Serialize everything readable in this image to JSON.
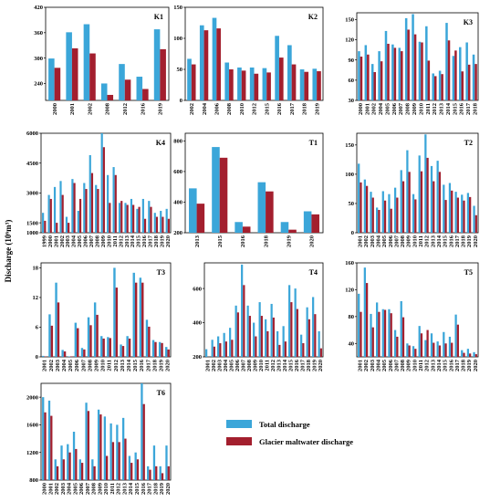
{
  "colors": {
    "total": "#3BA6D9",
    "glacier": "#A31F2E"
  },
  "ylabel": "Discharge (10⁶m³)",
  "legend": {
    "total": "Total discharge",
    "glacier": "Glacier maltwater discharge"
  },
  "chart_data": [
    {
      "id": "K1",
      "type": "bar",
      "title": "K1",
      "categories": [
        "2000",
        "2001",
        "2002",
        "2008",
        "2012",
        "2016",
        "2019"
      ],
      "ylim": [
        200,
        420
      ],
      "yticks": [
        240,
        300,
        360,
        420
      ],
      "series": [
        {
          "name": "Total discharge",
          "values": [
            299,
            361,
            380,
            240,
            286,
            256,
            368
          ]
        },
        {
          "name": "Glacier maltwater discharge",
          "values": [
            277,
            323,
            311,
            213,
            249,
            227,
            321
          ]
        }
      ]
    },
    {
      "id": "K2",
      "type": "bar",
      "title": "K2",
      "categories": [
        "2002",
        "2004",
        "2006",
        "2008",
        "2010",
        "2012",
        "2015",
        "2016",
        "2017",
        "2018",
        "2019"
      ],
      "ylim": [
        0,
        150
      ],
      "yticks": [
        0,
        50,
        100,
        150
      ],
      "series": [
        {
          "name": "Total discharge",
          "values": [
            67,
            121,
            133,
            61,
            53,
            53,
            52,
            104,
            89,
            50,
            51
          ]
        },
        {
          "name": "Glacier maltwater discharge",
          "values": [
            58,
            113,
            116,
            50,
            48,
            43,
            45,
            69,
            58,
            46,
            47
          ]
        }
      ]
    },
    {
      "id": "K3",
      "type": "bar",
      "title": "K3",
      "categories": [
        "2000",
        "2001",
        "2002",
        "2004",
        "2005",
        "2006",
        "2007",
        "2008",
        "2009",
        "2010",
        "2011",
        "2012",
        "2013",
        "2014",
        "2015",
        "2016",
        "2017",
        "2018"
      ],
      "ylim": [
        30,
        160
      ],
      "yticks": [
        30,
        60,
        90,
        120,
        150
      ],
      "series": [
        {
          "name": "Total discharge",
          "values": [
            103,
            112,
            84,
            103,
            133,
            113,
            108,
            152,
            158,
            117,
            140,
            70,
            74,
            145,
            96,
            109,
            116,
            98
          ]
        },
        {
          "name": "Glacier maltwater discharge",
          "values": [
            95,
            98,
            72,
            88,
            114,
            108,
            103,
            135,
            128,
            116,
            89,
            66,
            69,
            119,
            104,
            73,
            83,
            84
          ]
        }
      ]
    },
    {
      "id": "K4",
      "type": "bar",
      "title": "K4",
      "categories": [
        "1999",
        "2000",
        "2001",
        "2002",
        "2003",
        "2004",
        "2005",
        "2006",
        "2007",
        "2008",
        "2009",
        "2010",
        "2011",
        "2012",
        "2013",
        "2014",
        "2015",
        "2016",
        "2017",
        "2018",
        "2019",
        "2020"
      ],
      "ylim": [
        1000,
        6000
      ],
      "yticks": [
        1000,
        1500,
        3000,
        4500,
        6000
      ],
      "series": [
        {
          "name": "Total discharge",
          "values": [
            2000,
            2900,
            3300,
            3600,
            1800,
            3700,
            2100,
            3500,
            4900,
            3400,
            6000,
            3900,
            4300,
            2500,
            2500,
            2700,
            2200,
            2700,
            2600,
            2000,
            2100,
            2200
          ]
        },
        {
          "name": "Glacier maltwater discharge",
          "values": [
            1600,
            2700,
            1500,
            2900,
            1500,
            3500,
            2700,
            3200,
            4000,
            3200,
            5300,
            2500,
            3900,
            2600,
            2400,
            2400,
            2300,
            1700,
            2300,
            1800,
            1800,
            1700
          ]
        }
      ]
    },
    {
      "id": "T1",
      "type": "bar",
      "title": "T1",
      "categories": [
        "2013",
        "2015",
        "2016",
        "2018",
        "2019",
        "2020"
      ],
      "ylim": [
        200,
        850
      ],
      "yticks": [
        200,
        400,
        600,
        800
      ],
      "series": [
        {
          "name": "Total discharge",
          "values": [
            490,
            760,
            270,
            530,
            270,
            340
          ]
        },
        {
          "name": "Glacier maltwater discharge",
          "values": [
            390,
            690,
            240,
            470,
            220,
            320
          ]
        }
      ]
    },
    {
      "id": "T2",
      "type": "bar",
      "title": "T2",
      "categories": [
        "2001",
        "2002",
        "2003",
        "2004",
        "2005",
        "2006",
        "2007",
        "2008",
        "2009",
        "2010",
        "2011",
        "2012",
        "2013",
        "2014",
        "2015",
        "2016",
        "2017",
        "2018",
        "2019",
        "2020"
      ],
      "ylim": [
        0,
        170
      ],
      "yticks": [
        0,
        50,
        100,
        150
      ],
      "series": [
        {
          "name": "Total discharge",
          "values": [
            118,
            91,
            70,
            43,
            71,
            66,
            77,
            107,
            141,
            66,
            132,
            168,
            114,
            123,
            82,
            85,
            70,
            65,
            68,
            46
          ]
        },
        {
          "name": "Glacier maltwater discharge",
          "values": [
            86,
            80,
            60,
            39,
            55,
            41,
            60,
            88,
            104,
            57,
            105,
            128,
            88,
            104,
            56,
            72,
            60,
            55,
            61,
            30
          ]
        }
      ]
    },
    {
      "id": "T3",
      "type": "bar",
      "title": "T3",
      "categories": [
        "2001",
        "2002",
        "2003",
        "2004",
        "2005",
        "2006",
        "2007",
        "2008",
        "2009",
        "2010",
        "2011",
        "2012",
        "2013",
        "2014",
        "2015",
        "2016",
        "2017",
        "2018",
        "2019",
        "2020"
      ],
      "ylim": [
        0,
        19
      ],
      "yticks": [
        0,
        6,
        12,
        18
      ],
      "series": [
        {
          "name": "Total discharge",
          "values": [
            0.2,
            8.6,
            15,
            1.4,
            0.1,
            6.9,
            1.8,
            8,
            11,
            4.2,
            4,
            18,
            2.5,
            4.2,
            17,
            16,
            7.5,
            3.4,
            3,
            2
          ]
        },
        {
          "name": "Glacier maltwater discharge",
          "values": [
            0.1,
            6.3,
            11,
            1.1,
            0.1,
            5.8,
            1.5,
            6.4,
            8.5,
            3.7,
            3.8,
            14,
            2.2,
            3.7,
            15,
            15,
            6.1,
            3,
            2.8,
            1.5
          ]
        }
      ]
    },
    {
      "id": "T4",
      "type": "bar",
      "title": "T4",
      "categories": [
        "2001",
        "2002",
        "2003",
        "2004",
        "2005",
        "2006",
        "2007",
        "2008",
        "2009",
        "2010",
        "2011",
        "2012",
        "2013",
        "2014",
        "2015",
        "2016",
        "2017",
        "2018",
        "2019",
        "2020"
      ],
      "ylim": [
        200,
        750
      ],
      "yticks": [
        200,
        400,
        600
      ],
      "series": [
        {
          "name": "Total discharge",
          "values": [
            245,
            300,
            320,
            340,
            370,
            500,
            740,
            500,
            400,
            520,
            420,
            510,
            350,
            380,
            620,
            600,
            330,
            490,
            550,
            350
          ]
        },
        {
          "name": "Glacier maltwater discharge",
          "values": [
            200,
            260,
            280,
            290,
            300,
            460,
            620,
            440,
            320,
            440,
            350,
            430,
            270,
            290,
            520,
            480,
            280,
            420,
            450,
            250
          ]
        }
      ]
    },
    {
      "id": "T5",
      "type": "bar",
      "title": "T5",
      "categories": [
        "2001",
        "2002",
        "2003",
        "2004",
        "2005",
        "2006",
        "2007",
        "2008",
        "2009",
        "2010",
        "2011",
        "2012",
        "2013",
        "2014",
        "2015",
        "2016",
        "2017",
        "2018",
        "2019",
        "2020"
      ],
      "ylim": [
        20,
        160
      ],
      "yticks": [
        40,
        80,
        120,
        160
      ],
      "series": [
        {
          "name": "Total discharge",
          "values": [
            114,
            153,
            84,
            101,
            91,
            91,
            60,
            103,
            40,
            36,
            66,
            45,
            55,
            43,
            57,
            50,
            83,
            30,
            32,
            27
          ]
        },
        {
          "name": "Glacier maltwater discharge",
          "values": [
            87,
            130,
            64,
            87,
            90,
            85,
            50,
            79,
            37,
            32,
            55,
            60,
            41,
            37,
            40,
            41,
            68,
            26,
            25,
            24
          ]
        }
      ]
    },
    {
      "id": "T6",
      "type": "bar",
      "title": "T6",
      "categories": [
        "2000",
        "2001",
        "2002",
        "2003",
        "2004",
        "2005",
        "2006",
        "2007",
        "2008",
        "2009",
        "2010",
        "2011",
        "2012",
        "2013",
        "2014",
        "2015",
        "2016",
        "2017",
        "2018",
        "2019",
        "2020"
      ],
      "ylim": [
        800,
        2200
      ],
      "yticks": [
        800,
        1200,
        1600,
        2000
      ],
      "series": [
        {
          "name": "Total discharge",
          "values": [
            2000,
            1950,
            1100,
            1300,
            1320,
            1500,
            1100,
            1920,
            1100,
            1820,
            1720,
            1620,
            1600,
            1700,
            1150,
            1200,
            2200,
            1000,
            1300,
            1000,
            1300
          ]
        },
        {
          "name": "Glacier maltwater discharge",
          "values": [
            1780,
            1730,
            1000,
            1100,
            1200,
            1250,
            1050,
            1800,
            1000,
            1750,
            1150,
            1350,
            1350,
            1400,
            1050,
            1100,
            1900,
            950,
            1000,
            900,
            1000
          ]
        }
      ]
    }
  ]
}
